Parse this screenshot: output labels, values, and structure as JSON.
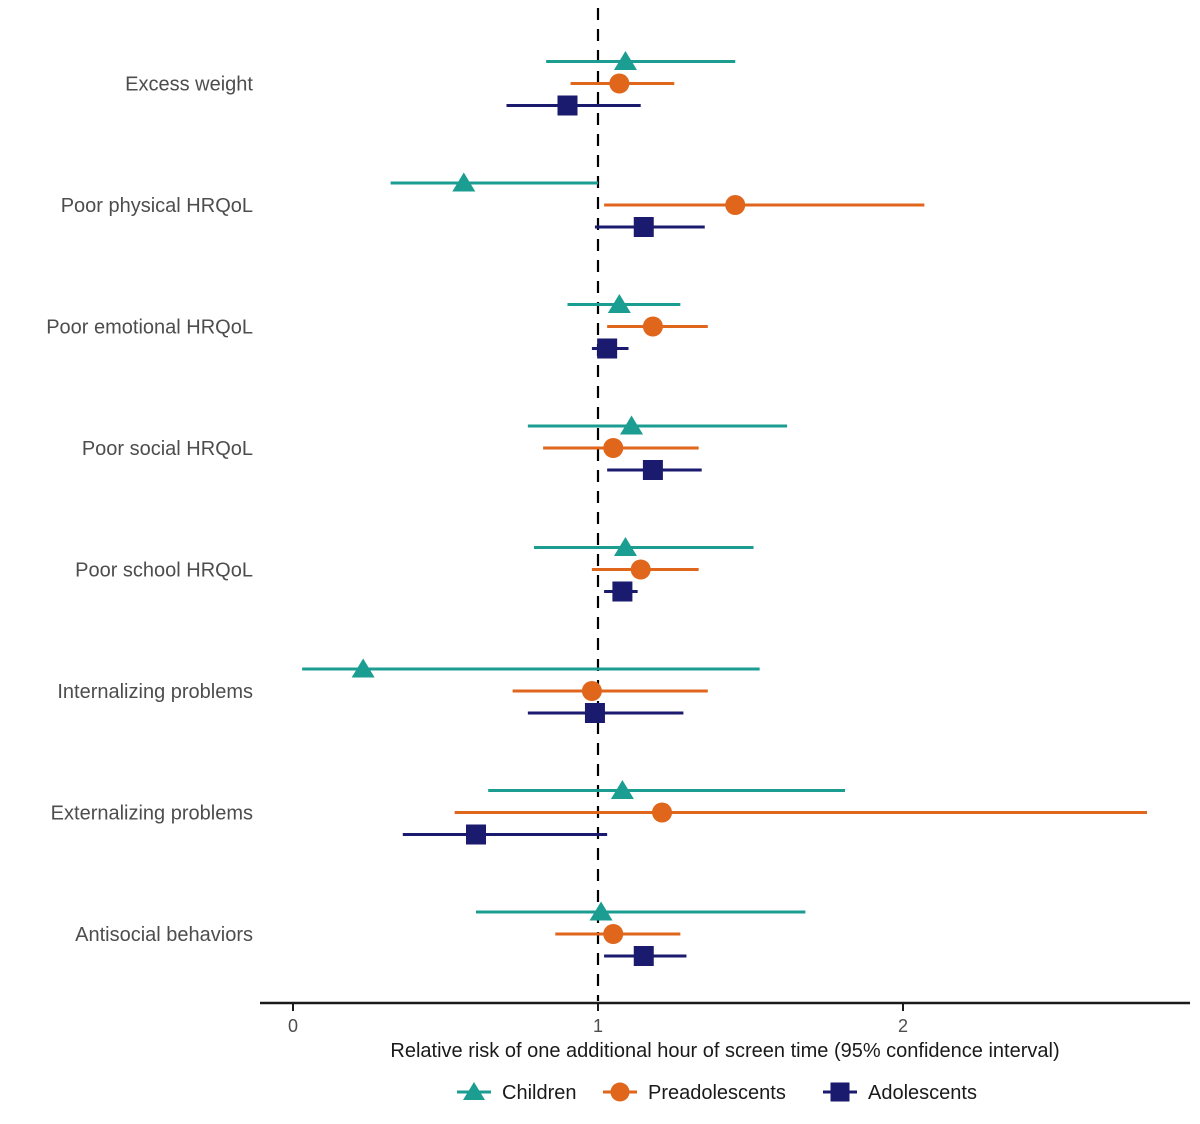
{
  "chart_data": {
    "type": "forest",
    "title": "",
    "xlabel": "Relative risk of one additional hour of screen time (95% confidence interval)",
    "x_ticks": [
      0,
      1,
      2
    ],
    "x_range": [
      -0.11,
      2.94
    ],
    "reference_line": 1.0,
    "grid": false,
    "legend_position": "bottom",
    "categories": [
      "Excess weight",
      "Poor physical HRQoL",
      "Poor emotional HRQoL",
      "Poor social HRQoL",
      "Poor school HRQoL",
      "Internalizing problems",
      "Externalizing problems",
      "Antisocial behaviors"
    ],
    "series": [
      {
        "name": "Children",
        "marker": "triangle",
        "color": "#1b9e91",
        "values": [
          {
            "est": 1.09,
            "lo": 0.83,
            "hi": 1.45
          },
          {
            "est": 0.56,
            "lo": 0.32,
            "hi": 1.0
          },
          {
            "est": 1.07,
            "lo": 0.9,
            "hi": 1.27
          },
          {
            "est": 1.11,
            "lo": 0.77,
            "hi": 1.62
          },
          {
            "est": 1.09,
            "lo": 0.79,
            "hi": 1.51
          },
          {
            "est": 0.23,
            "lo": 0.03,
            "hi": 1.53
          },
          {
            "est": 1.08,
            "lo": 0.64,
            "hi": 1.81
          },
          {
            "est": 1.01,
            "lo": 0.6,
            "hi": 1.68
          }
        ]
      },
      {
        "name": "Preadolescents",
        "marker": "circle",
        "color": "#e0661c",
        "values": [
          {
            "est": 1.07,
            "lo": 0.91,
            "hi": 1.25
          },
          {
            "est": 1.45,
            "lo": 1.02,
            "hi": 2.07
          },
          {
            "est": 1.18,
            "lo": 1.03,
            "hi": 1.36
          },
          {
            "est": 1.05,
            "lo": 0.82,
            "hi": 1.33
          },
          {
            "est": 1.14,
            "lo": 0.98,
            "hi": 1.33
          },
          {
            "est": 0.98,
            "lo": 0.72,
            "hi": 1.36
          },
          {
            "est": 1.21,
            "lo": 0.53,
            "hi": 2.8
          },
          {
            "est": 1.05,
            "lo": 0.86,
            "hi": 1.27
          }
        ]
      },
      {
        "name": "Adolescents",
        "marker": "square",
        "color": "#1a1a6e",
        "values": [
          {
            "est": 0.9,
            "lo": 0.7,
            "hi": 1.14
          },
          {
            "est": 1.15,
            "lo": 0.99,
            "hi": 1.35
          },
          {
            "est": 1.03,
            "lo": 0.98,
            "hi": 1.1
          },
          {
            "est": 1.18,
            "lo": 1.03,
            "hi": 1.34
          },
          {
            "est": 1.08,
            "lo": 1.02,
            "hi": 1.13
          },
          {
            "est": 0.99,
            "lo": 0.77,
            "hi": 1.28
          },
          {
            "est": 0.6,
            "lo": 0.36,
            "hi": 1.03
          },
          {
            "est": 1.15,
            "lo": 1.02,
            "hi": 1.29
          }
        ]
      }
    ],
    "colors": {
      "reference_line": "#000000",
      "axis_line": "#1a1a1a",
      "category_label": "#4d4d4d",
      "tick_label": "#4d4d4d"
    }
  }
}
